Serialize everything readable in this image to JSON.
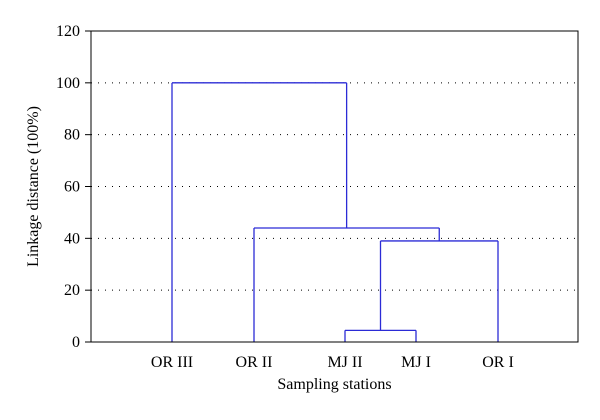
{
  "chart_data": {
    "type": "dendrogram",
    "xlabel": "Sampling stations",
    "ylabel": "Linkage distance (100%)",
    "ylim": [
      0,
      120
    ],
    "yticks": [
      0,
      20,
      40,
      60,
      80,
      100,
      120
    ],
    "grid": "horizontal dotted",
    "leaves": [
      "OR III",
      "OR II",
      "MJ II",
      "MJ I",
      "OR I"
    ],
    "merges": [
      {
        "members": [
          "MJ II",
          "MJ I"
        ],
        "distance": 4.5
      },
      {
        "members": [
          "MJ II",
          "MJ I",
          "OR I"
        ],
        "distance": 39
      },
      {
        "members": [
          "OR II",
          "MJ II",
          "MJ I",
          "OR I"
        ],
        "distance": 44
      },
      {
        "members": [
          "OR III",
          "OR II",
          "MJ II",
          "MJ I",
          "OR I"
        ],
        "distance": 100
      }
    ],
    "colors": {
      "links": "#2b2bd6",
      "axes": "#000000",
      "grid": "#000000"
    }
  }
}
